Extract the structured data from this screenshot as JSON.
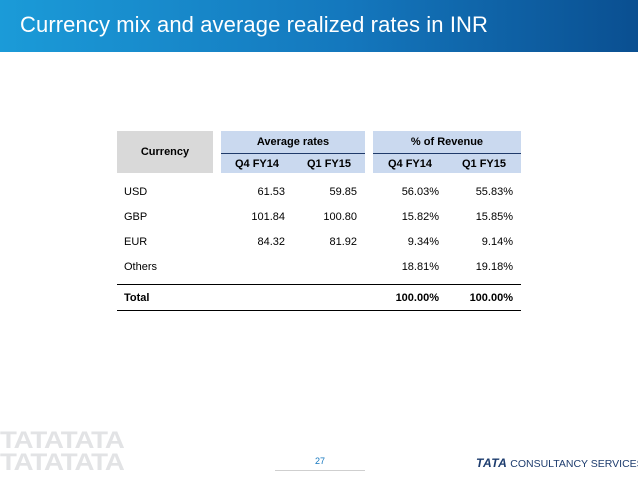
{
  "header": {
    "title": "Currency mix and average realized rates in INR"
  },
  "table": {
    "currency_header": "Currency",
    "group_headers": {
      "average_rates": "Average rates",
      "pct_revenue": "% of Revenue"
    },
    "sub_headers": [
      "Q4 FY14",
      "Q1 FY15",
      "Q4 FY14",
      "Q1 FY15"
    ],
    "rows": [
      {
        "currency": "USD",
        "avg_q4fy14": "61.53",
        "avg_q1fy15": "59.85",
        "rev_q4fy14": "56.03%",
        "rev_q1fy15": "55.83%"
      },
      {
        "currency": "GBP",
        "avg_q4fy14": "101.84",
        "avg_q1fy15": "100.80",
        "rev_q4fy14": "15.82%",
        "rev_q1fy15": "15.85%"
      },
      {
        "currency": "EUR",
        "avg_q4fy14": "84.32",
        "avg_q1fy15": "81.92",
        "rev_q4fy14": "9.34%",
        "rev_q1fy15": "9.14%"
      },
      {
        "currency": "Others",
        "avg_q4fy14": "",
        "avg_q1fy15": "",
        "rev_q4fy14": "18.81%",
        "rev_q1fy15": "19.18%"
      }
    ],
    "total": {
      "label": "Total",
      "rev_q4fy14": "100.00%",
      "rev_q1fy15": "100.00%"
    }
  },
  "footer": {
    "page_number": "27",
    "logo_brand": "TATA",
    "logo_text": "CONSULTANCY SERVICES",
    "watermark": "TATATATA"
  },
  "colors": {
    "header_start": "#1b9bd8",
    "header_end": "#0a4f91",
    "table_header": "#cad9ef",
    "currency_header": "#d9d9d9"
  }
}
